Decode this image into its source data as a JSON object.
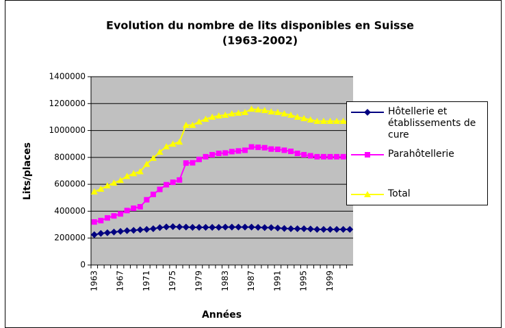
{
  "chart_data": {
    "type": "line",
    "title": [
      "Evolution du nombre de lits disponibles en Suisse",
      "(1963-2002)"
    ],
    "x_label": "Années",
    "y_label": "Lits/places",
    "categories": [
      "1963",
      null,
      null,
      null,
      "1967",
      null,
      null,
      null,
      "1971",
      null,
      null,
      null,
      "1975",
      null,
      null,
      null,
      "1979",
      null,
      null,
      null,
      "1983",
      null,
      null,
      null,
      "1987",
      null,
      null,
      null,
      "1991",
      null,
      null,
      null,
      "1995",
      null,
      null,
      null,
      "1999",
      null,
      null,
      null
    ],
    "ylim": [
      0,
      1400000
    ],
    "yticks": [
      0,
      200000,
      400000,
      600000,
      800000,
      1000000,
      1200000,
      1400000
    ],
    "grid": true,
    "series": [
      {
        "name": "Hôtellerie et établissements de cure",
        "color": "#000080",
        "marker": "diamond",
        "values": [
          225000,
          235000,
          240000,
          245000,
          250000,
          255000,
          258000,
          262000,
          265000,
          270000,
          278000,
          283000,
          285000,
          283000,
          282000,
          280000,
          280000,
          280000,
          280000,
          280000,
          282000,
          282000,
          282000,
          282000,
          282000,
          280000,
          278000,
          278000,
          275000,
          272000,
          270000,
          270000,
          270000,
          268000,
          265000,
          265000,
          265000,
          265000,
          265000,
          265000
        ]
      },
      {
        "name": "Parahôtellerie",
        "color": "#ff00ff",
        "marker": "square",
        "values": [
          320000,
          330000,
          350000,
          365000,
          380000,
          405000,
          422000,
          433000,
          485000,
          525000,
          562000,
          597000,
          615000,
          632000,
          758000,
          760000,
          785000,
          805000,
          820000,
          830000,
          833000,
          843000,
          848000,
          853000,
          878000,
          875000,
          872000,
          862000,
          860000,
          853000,
          845000,
          830000,
          820000,
          812000,
          805000,
          805000,
          805000,
          805000,
          805000,
          800000
        ]
      },
      {
        "name": "Total",
        "color": "#ffff00",
        "marker": "triangle",
        "values": [
          545000,
          565000,
          590000,
          610000,
          630000,
          660000,
          680000,
          695000,
          750000,
          795000,
          840000,
          880000,
          900000,
          915000,
          1040000,
          1040000,
          1065000,
          1085000,
          1100000,
          1110000,
          1115000,
          1125000,
          1130000,
          1135000,
          1160000,
          1155000,
          1150000,
          1140000,
          1135000,
          1125000,
          1115000,
          1100000,
          1090000,
          1080000,
          1070000,
          1070000,
          1070000,
          1070000,
          1070000,
          1065000
        ]
      }
    ]
  }
}
